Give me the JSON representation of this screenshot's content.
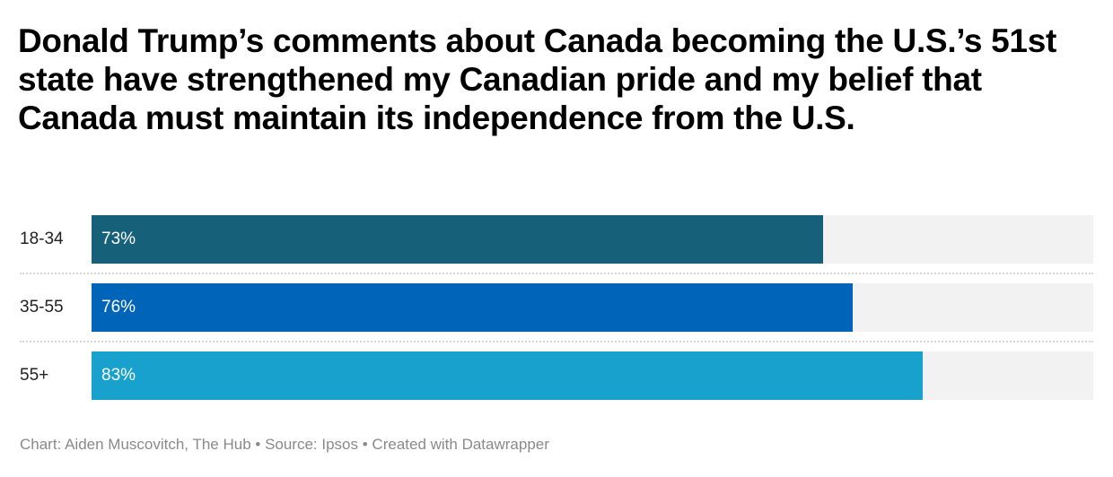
{
  "title": "Donald Trump’s comments about Canada becoming the U.S.’s 51st state have strengthened my Canadian pride and my belief that Canada must maintain its independence from the U.S.",
  "rows": [
    {
      "label": "18-34",
      "value": 73,
      "value_label": "73%",
      "color": "#17607a"
    },
    {
      "label": "35-55",
      "value": 76,
      "value_label": "76%",
      "color": "#0064b8"
    },
    {
      "label": "55+",
      "value": 83,
      "value_label": "83%",
      "color": "#18a1cd"
    }
  ],
  "footer": {
    "chart": "Chart: Aiden Muscovitch, The Hub",
    "separator": " • ",
    "source": "Source: Ipsos",
    "created": "Created with Datawrapper"
  },
  "colors": {
    "track": "#f2f2f2",
    "separator": "#d6d6d6",
    "footer_text": "#8a8a8a"
  },
  "chart_data": {
    "type": "bar",
    "orientation": "horizontal",
    "title": "Donald Trump’s comments about Canada becoming the U.S.’s 51st state have strengthened my Canadian pride and my belief that Canada must maintain its independence from the U.S.",
    "categories": [
      "18-34",
      "35-55",
      "55+"
    ],
    "values": [
      73,
      76,
      83
    ],
    "unit": "%",
    "xlim": [
      0,
      100
    ],
    "xlabel": "",
    "ylabel": "",
    "grid": false,
    "legend": null,
    "source": "Ipsos",
    "credit": "Chart: Aiden Muscovitch, The Hub"
  }
}
